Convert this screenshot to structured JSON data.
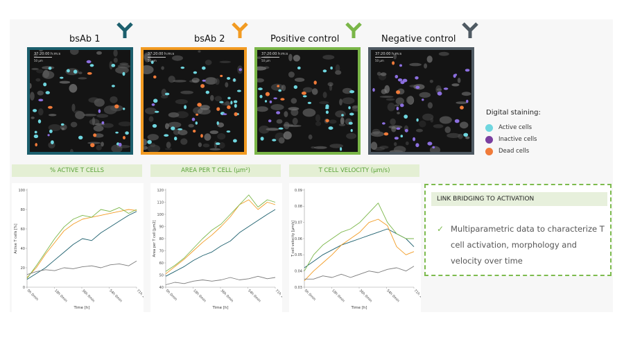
{
  "conditions": [
    {
      "name": "bsAb 1",
      "color": "#1c5f6d",
      "timestamp": "37:20:00  h:m:s",
      "scale": "50 µm"
    },
    {
      "name": "bsAb 2",
      "color": "#f29b22",
      "timestamp": "37:20:00  h:m:s",
      "scale": "50 µm"
    },
    {
      "name": "Positive control",
      "color": "#7ab648",
      "timestamp": "37:20:00  h:m:s",
      "scale": "50 µm"
    },
    {
      "name": "Negative control",
      "color": "#4f5a63",
      "timestamp": "37:20:00  h:m:s",
      "scale": "50 µm"
    }
  ],
  "legend": {
    "title": "Digital staining:",
    "items": [
      {
        "label": "Active cells",
        "color": "#6fd6df"
      },
      {
        "label": "Inactive cells",
        "color": "#7a3fa0"
      },
      {
        "label": "Dead cells",
        "color": "#f07b3a"
      }
    ]
  },
  "metrics": [
    {
      "header": "% ACTIVE T CELLS"
    },
    {
      "header": "AREA PER T CELL (µm²)"
    },
    {
      "header": "T CELL VELOCITY (µm/s)"
    }
  ],
  "chart_data": [
    {
      "type": "line",
      "title": "% ACTIVE T CELLS",
      "xlabel": "Time [h]",
      "ylabel": "Active T cells [%]",
      "x_ticks": [
        "0h 0min",
        "18h 0min",
        "36h 0min",
        "54h 0min",
        "71h 12min"
      ],
      "xlim": [
        0,
        71.2
      ],
      "ylim": [
        0,
        100
      ],
      "y_ticks": [
        0,
        20,
        40,
        60,
        80,
        100
      ],
      "x": [
        0,
        6,
        12,
        18,
        24,
        30,
        36,
        42,
        48,
        54,
        60,
        66,
        71.2
      ],
      "series": [
        {
          "color": "#1c5f6d",
          "values": [
            8,
            14,
            20,
            28,
            36,
            44,
            50,
            48,
            56,
            62,
            68,
            74,
            78
          ]
        },
        {
          "color": "#f29b22",
          "values": [
            10,
            20,
            34,
            46,
            58,
            65,
            70,
            72,
            74,
            76,
            78,
            80,
            79
          ]
        },
        {
          "color": "#7ab648",
          "values": [
            9,
            22,
            36,
            50,
            62,
            70,
            74,
            72,
            80,
            78,
            82,
            76,
            80
          ]
        },
        {
          "color": "#7a7a7a",
          "values": [
            13,
            16,
            18,
            17,
            20,
            19,
            21,
            22,
            20,
            23,
            24,
            22,
            27
          ]
        }
      ]
    },
    {
      "type": "line",
      "title": "AREA PER T CELL (µm²)",
      "xlabel": "Time [h]",
      "ylabel": "Area per T cell [µm2]",
      "x_ticks": [
        "0h 0min",
        "18h 0min",
        "36h 0min",
        "54h 0min",
        "71h 12min"
      ],
      "xlim": [
        0,
        71.2
      ],
      "ylim": [
        40,
        120
      ],
      "y_ticks": [
        40,
        50,
        60,
        70,
        80,
        90,
        100,
        110,
        120
      ],
      "x": [
        0,
        6,
        12,
        18,
        24,
        30,
        36,
        42,
        48,
        54,
        60,
        66,
        71.2
      ],
      "series": [
        {
          "color": "#1c5f6d",
          "values": [
            49,
            53,
            57,
            62,
            66,
            69,
            74,
            78,
            85,
            90,
            95,
            100,
            104
          ]
        },
        {
          "color": "#f29b22",
          "values": [
            51,
            57,
            63,
            70,
            77,
            83,
            90,
            98,
            108,
            112,
            104,
            110,
            108
          ]
        },
        {
          "color": "#7ab648",
          "values": [
            53,
            58,
            64,
            72,
            80,
            87,
            92,
            100,
            108,
            116,
            106,
            112,
            110
          ]
        },
        {
          "color": "#7a7a7a",
          "values": [
            42,
            44,
            43,
            45,
            46,
            45,
            46,
            48,
            46,
            47,
            49,
            47,
            48
          ]
        }
      ]
    },
    {
      "type": "line",
      "title": "T CELL VELOCITY (µm/s)",
      "xlabel": "Time [h]",
      "ylabel": "T cell velocity [µm/s]",
      "x_ticks": [
        "0h 0min",
        "18h 0min",
        "36h 0min",
        "54h 0min",
        "71h 12min"
      ],
      "xlim": [
        0,
        71.2
      ],
      "ylim": [
        0.03,
        0.09
      ],
      "y_ticks": [
        0.03,
        0.04,
        0.05,
        0.06,
        0.07,
        0.08,
        0.09
      ],
      "x": [
        0,
        6,
        12,
        18,
        24,
        30,
        36,
        42,
        48,
        54,
        60,
        66,
        71.2
      ],
      "series": [
        {
          "color": "#1c5f6d",
          "values": [
            0.042,
            0.046,
            0.05,
            0.053,
            0.056,
            0.058,
            0.06,
            0.062,
            0.064,
            0.066,
            0.063,
            0.06,
            0.055
          ]
        },
        {
          "color": "#f29b22",
          "values": [
            0.034,
            0.04,
            0.045,
            0.05,
            0.056,
            0.06,
            0.064,
            0.07,
            0.072,
            0.068,
            0.055,
            0.05,
            0.052
          ]
        },
        {
          "color": "#7ab648",
          "values": [
            0.04,
            0.05,
            0.056,
            0.06,
            0.064,
            0.066,
            0.07,
            0.076,
            0.082,
            0.07,
            0.063,
            0.06,
            0.06
          ]
        },
        {
          "color": "#7a7a7a",
          "values": [
            0.035,
            0.035,
            0.037,
            0.036,
            0.038,
            0.036,
            0.038,
            0.04,
            0.039,
            0.041,
            0.042,
            0.04,
            0.043
          ]
        }
      ]
    }
  ],
  "link_box": {
    "header": "LINK BRIDGING TO ACTIVATION",
    "check": "✓",
    "text": "Multiparametric data to characterize T cell activation, morphology and velocity over time"
  }
}
